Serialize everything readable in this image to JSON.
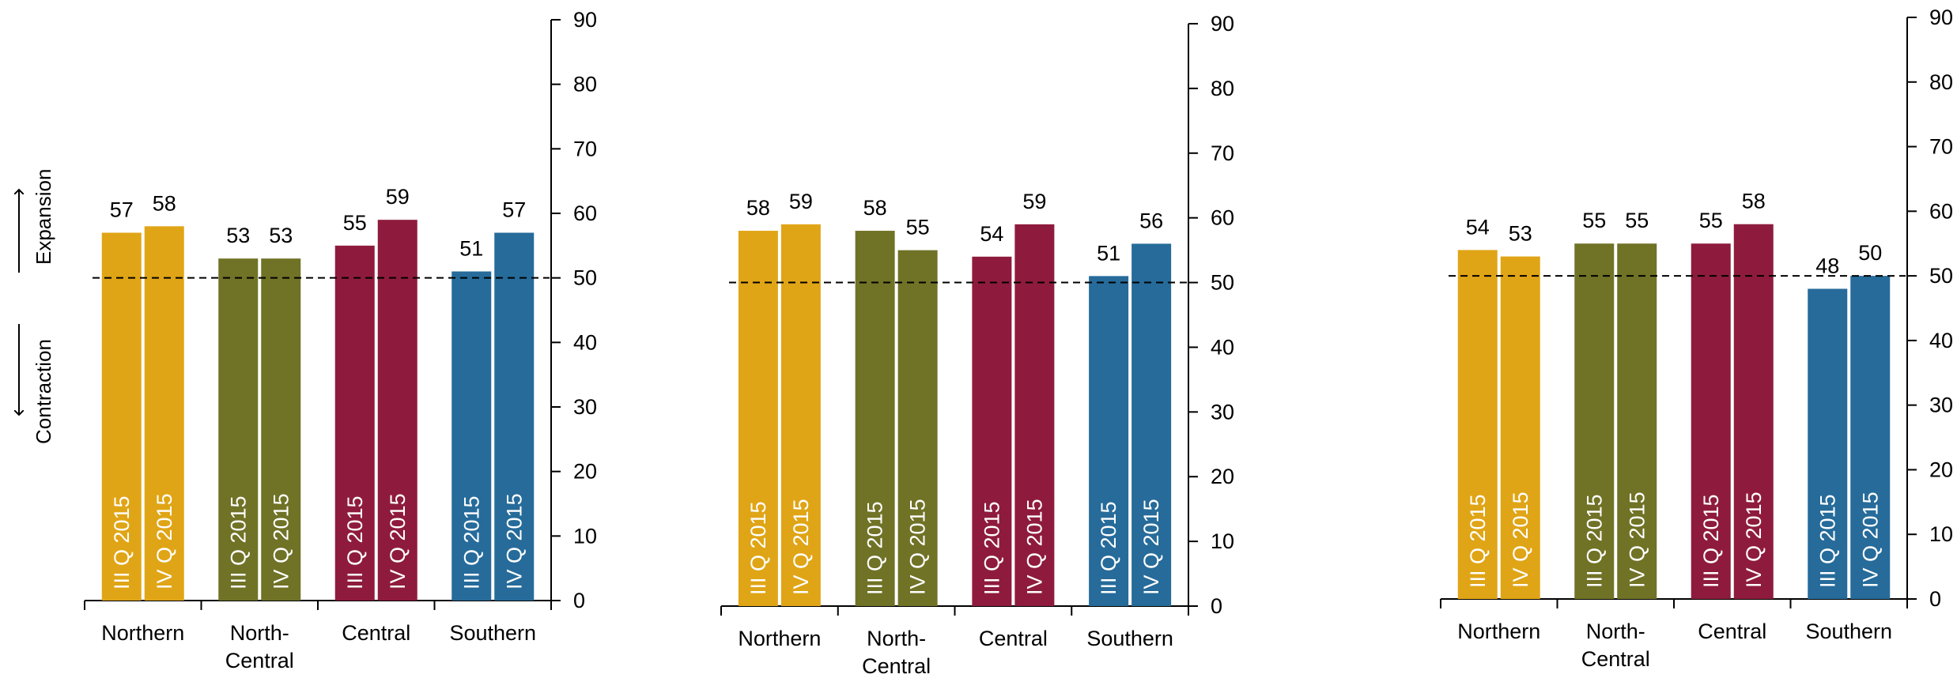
{
  "colors": {
    "Northern": "#E0A516",
    "North-Central": "#707226",
    "Central": "#8E1B3D",
    "Southern": "#266B9A",
    "axis": "#000000",
    "reference_line": "#000000"
  },
  "side_labels": {
    "expansion": "Expansion",
    "contraction": "Contraction"
  },
  "chart_data": [
    {
      "type": "bar",
      "categories": [
        [
          "Northern"
        ],
        [
          "North-",
          "Central"
        ],
        [
          "Central"
        ],
        [
          "Southern"
        ]
      ],
      "series": [
        {
          "name": "III Q 2015",
          "values": [
            57,
            53,
            55,
            51
          ]
        },
        {
          "name": "IV Q 2015",
          "values": [
            58,
            53,
            59,
            57
          ]
        }
      ],
      "ylim": [
        0,
        90
      ],
      "yticks": [
        "0",
        "10",
        "20",
        "30",
        "40",
        "50",
        "60",
        "70",
        "80",
        "90"
      ],
      "y_axis_side": "right",
      "reference_line": 50,
      "grid": false
    },
    {
      "type": "bar",
      "categories": [
        [
          "Northern"
        ],
        [
          "North-",
          "Central"
        ],
        [
          "Central"
        ],
        [
          "Southern"
        ]
      ],
      "series": [
        {
          "name": "III Q 2015",
          "values": [
            58,
            58,
            54,
            51
          ]
        },
        {
          "name": "IV Q 2015",
          "values": [
            59,
            55,
            59,
            56
          ]
        }
      ],
      "ylim": [
        0,
        90
      ],
      "yticks": [
        "0",
        "10",
        "20",
        "30",
        "40",
        "50",
        "60",
        "70",
        "80",
        "90"
      ],
      "y_axis_side": "right",
      "reference_line": 50,
      "grid": false
    },
    {
      "type": "bar",
      "categories": [
        [
          "Northern"
        ],
        [
          "North-",
          "Central"
        ],
        [
          "Central"
        ],
        [
          "Southern"
        ]
      ],
      "series": [
        {
          "name": "III Q 2015",
          "values": [
            54,
            55,
            55,
            48
          ]
        },
        {
          "name": "IV Q 2015",
          "values": [
            53,
            55,
            58,
            50
          ]
        }
      ],
      "ylim": [
        0,
        90
      ],
      "yticks": [
        "0",
        "10",
        "20",
        "30",
        "40",
        "50",
        "60",
        "70",
        "80",
        "90"
      ],
      "y_axis_side": "right",
      "reference_line": 50,
      "grid": false
    }
  ]
}
